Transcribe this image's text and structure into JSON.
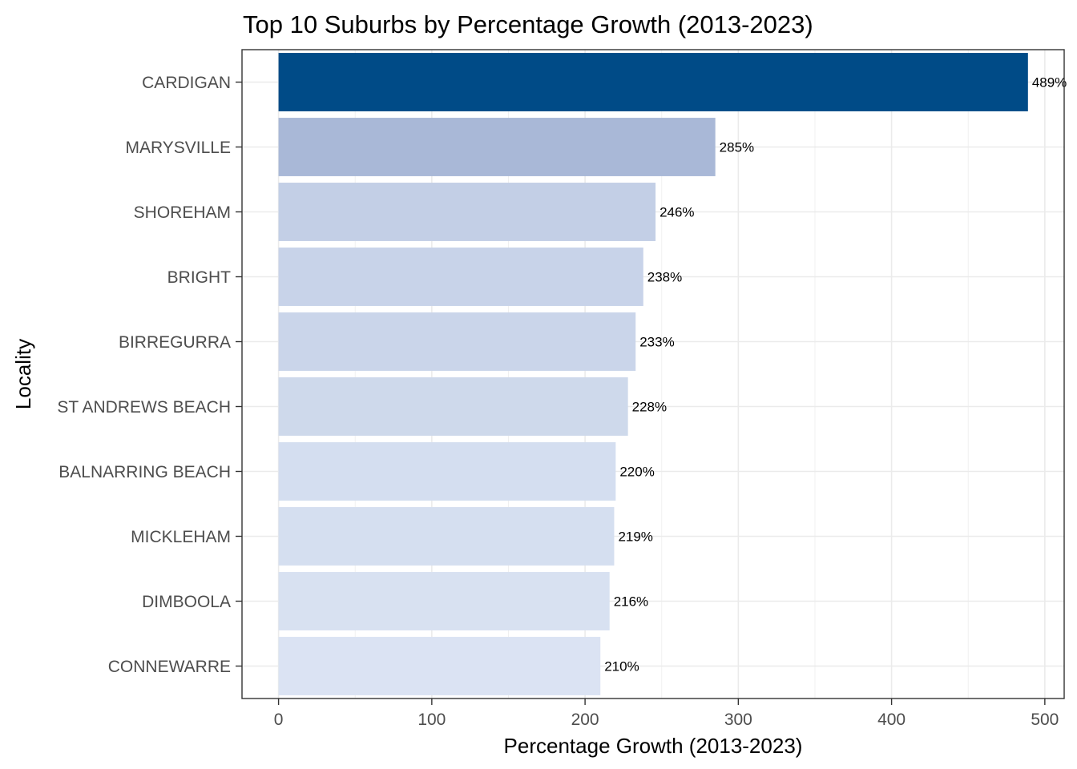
{
  "chart_data": {
    "type": "bar",
    "orientation": "horizontal",
    "title": "Top 10 Suburbs by Percentage Growth (2013-2023)",
    "xlabel": "Percentage Growth (2013-2023)",
    "ylabel": "Locality",
    "xlim": [
      0,
      500
    ],
    "x_ticks": [
      "0",
      "100",
      "200",
      "300",
      "400",
      "500"
    ],
    "grid": true,
    "categories": [
      "CARDIGAN",
      "MARYSVILLE",
      "SHOREHAM",
      "BRIGHT",
      "BIRREGURRA",
      "ST ANDREWS BEACH",
      "BALNARRING BEACH",
      "MICKLEHAM",
      "DIMBOOLA",
      "CONNEWARRE"
    ],
    "values": [
      489,
      285,
      246,
      238,
      233,
      228,
      220,
      219,
      216,
      210
    ],
    "data_labels": [
      "489%",
      "285%",
      "246%",
      "238%",
      "233%",
      "228%",
      "220%",
      "219%",
      "216%",
      "210%"
    ],
    "colors": [
      "#004b87",
      "#a9b8d7",
      "#c3cfe6",
      "#c8d3e9",
      "#cad5ea",
      "#ced9eb",
      "#d4def0",
      "#d5dff0",
      "#d8e1f1",
      "#dbe3f3"
    ]
  }
}
